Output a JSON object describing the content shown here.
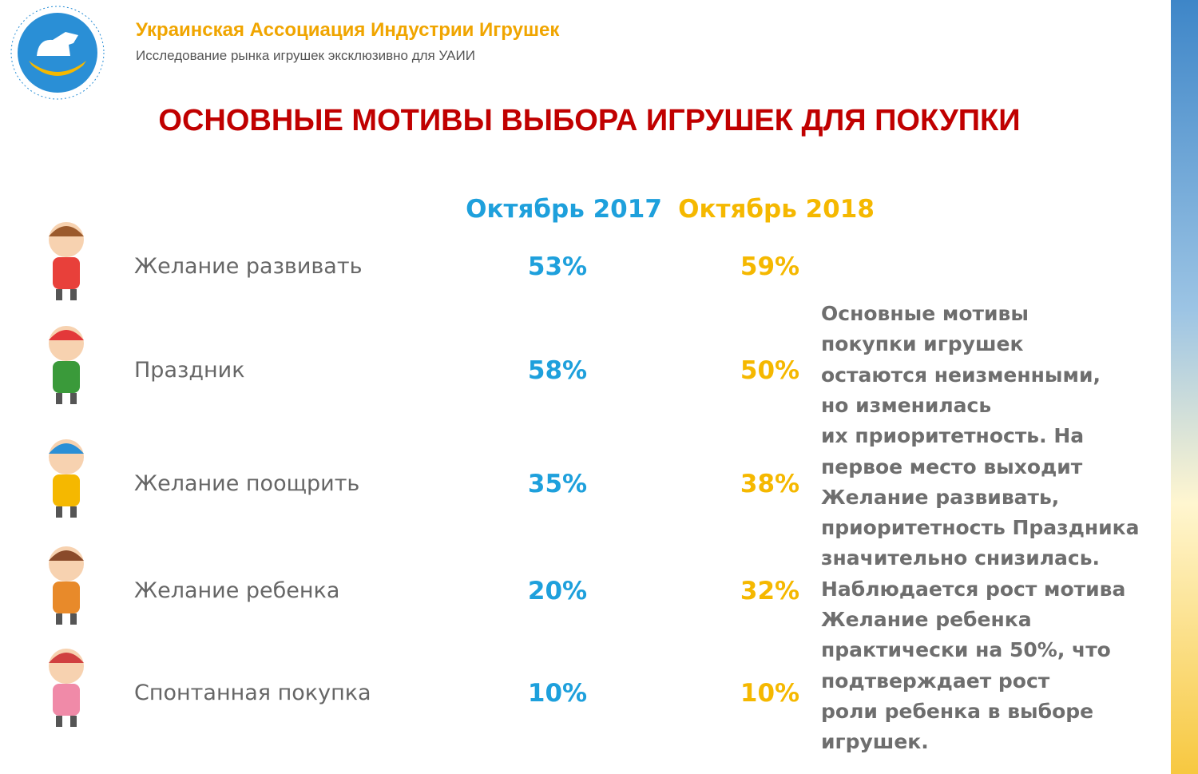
{
  "header": {
    "organization": "Украинская Ассоциация Индустрии Игрушек",
    "subtitle": "Исследование рынка игрушек эксклюзивно для УАИИ"
  },
  "title": "ОСНОВНЫЕ МОТИВЫ ВЫБОРА ИГРУШЕК ДЛЯ ПОКУПКИ",
  "table": {
    "columns": [
      "Октябрь 2017",
      "Октябрь 2018"
    ],
    "rows": [
      [
        "Желание развивать",
        "53%",
        "59%"
      ],
      [
        "Праздник",
        "58%",
        "50%"
      ],
      [
        "Желание поощрить",
        "35%",
        "38%"
      ],
      [
        "Желание ребенка",
        "20%",
        "32%"
      ],
      [
        "Спонтанная покупка",
        "10%",
        "10%"
      ]
    ]
  },
  "note": [
    "Основные мотивы",
    "покупки игрушек",
    "остаются неизменными,",
    "но изменилась",
    "их приоритетность. На",
    "первое место выходит",
    "Желание развивать,",
    "приоритетность Праздника",
    "значительно снизилась.",
    "Наблюдается рост мотива",
    "Желание ребенка",
    "практически на 50%, что",
    "подтверждает рост",
    "роли ребенка в выборе",
    "игрушек."
  ]
}
